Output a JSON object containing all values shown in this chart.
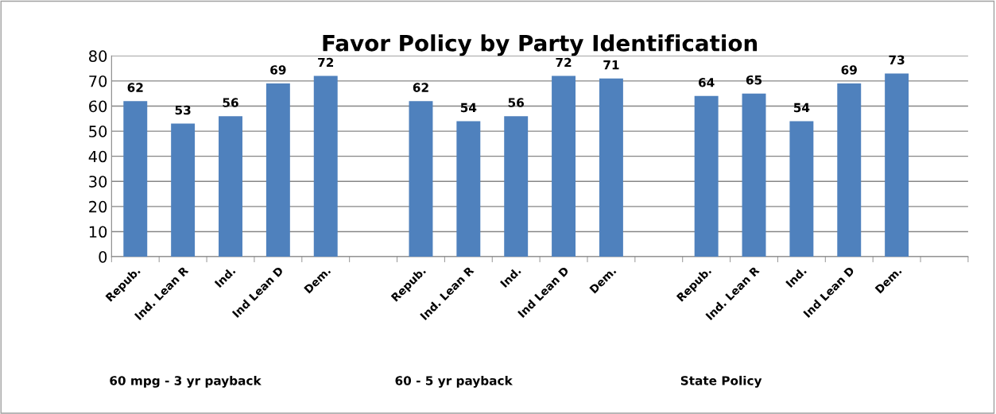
{
  "chart_data": {
    "type": "bar",
    "title": "Favor Policy by Party Identification",
    "categories": [
      "Repub.",
      "Ind. Lean R",
      "Ind.",
      "Ind Lean D",
      "Dem.",
      null,
      "Repub.",
      "Ind. Lean R",
      "Ind.",
      "Ind Lean D",
      "Dem.",
      null,
      "Repub.",
      "Ind. Lean R",
      "Ind.",
      "Ind Lean D",
      "Dem.",
      null
    ],
    "values": [
      62,
      53,
      56,
      69,
      72,
      null,
      62,
      54,
      56,
      72,
      71,
      null,
      64,
      65,
      54,
      69,
      73,
      null
    ],
    "color": "#4f81bd",
    "ylim": [
      0,
      80
    ],
    "yticks": [
      0,
      10,
      20,
      30,
      40,
      50,
      60,
      70,
      80
    ],
    "grid": "y",
    "data_labels": true,
    "legend": false,
    "annotations": [
      "60 mpg - 3 yr payback",
      "60 - 5 yr payback",
      "State Policy"
    ]
  }
}
